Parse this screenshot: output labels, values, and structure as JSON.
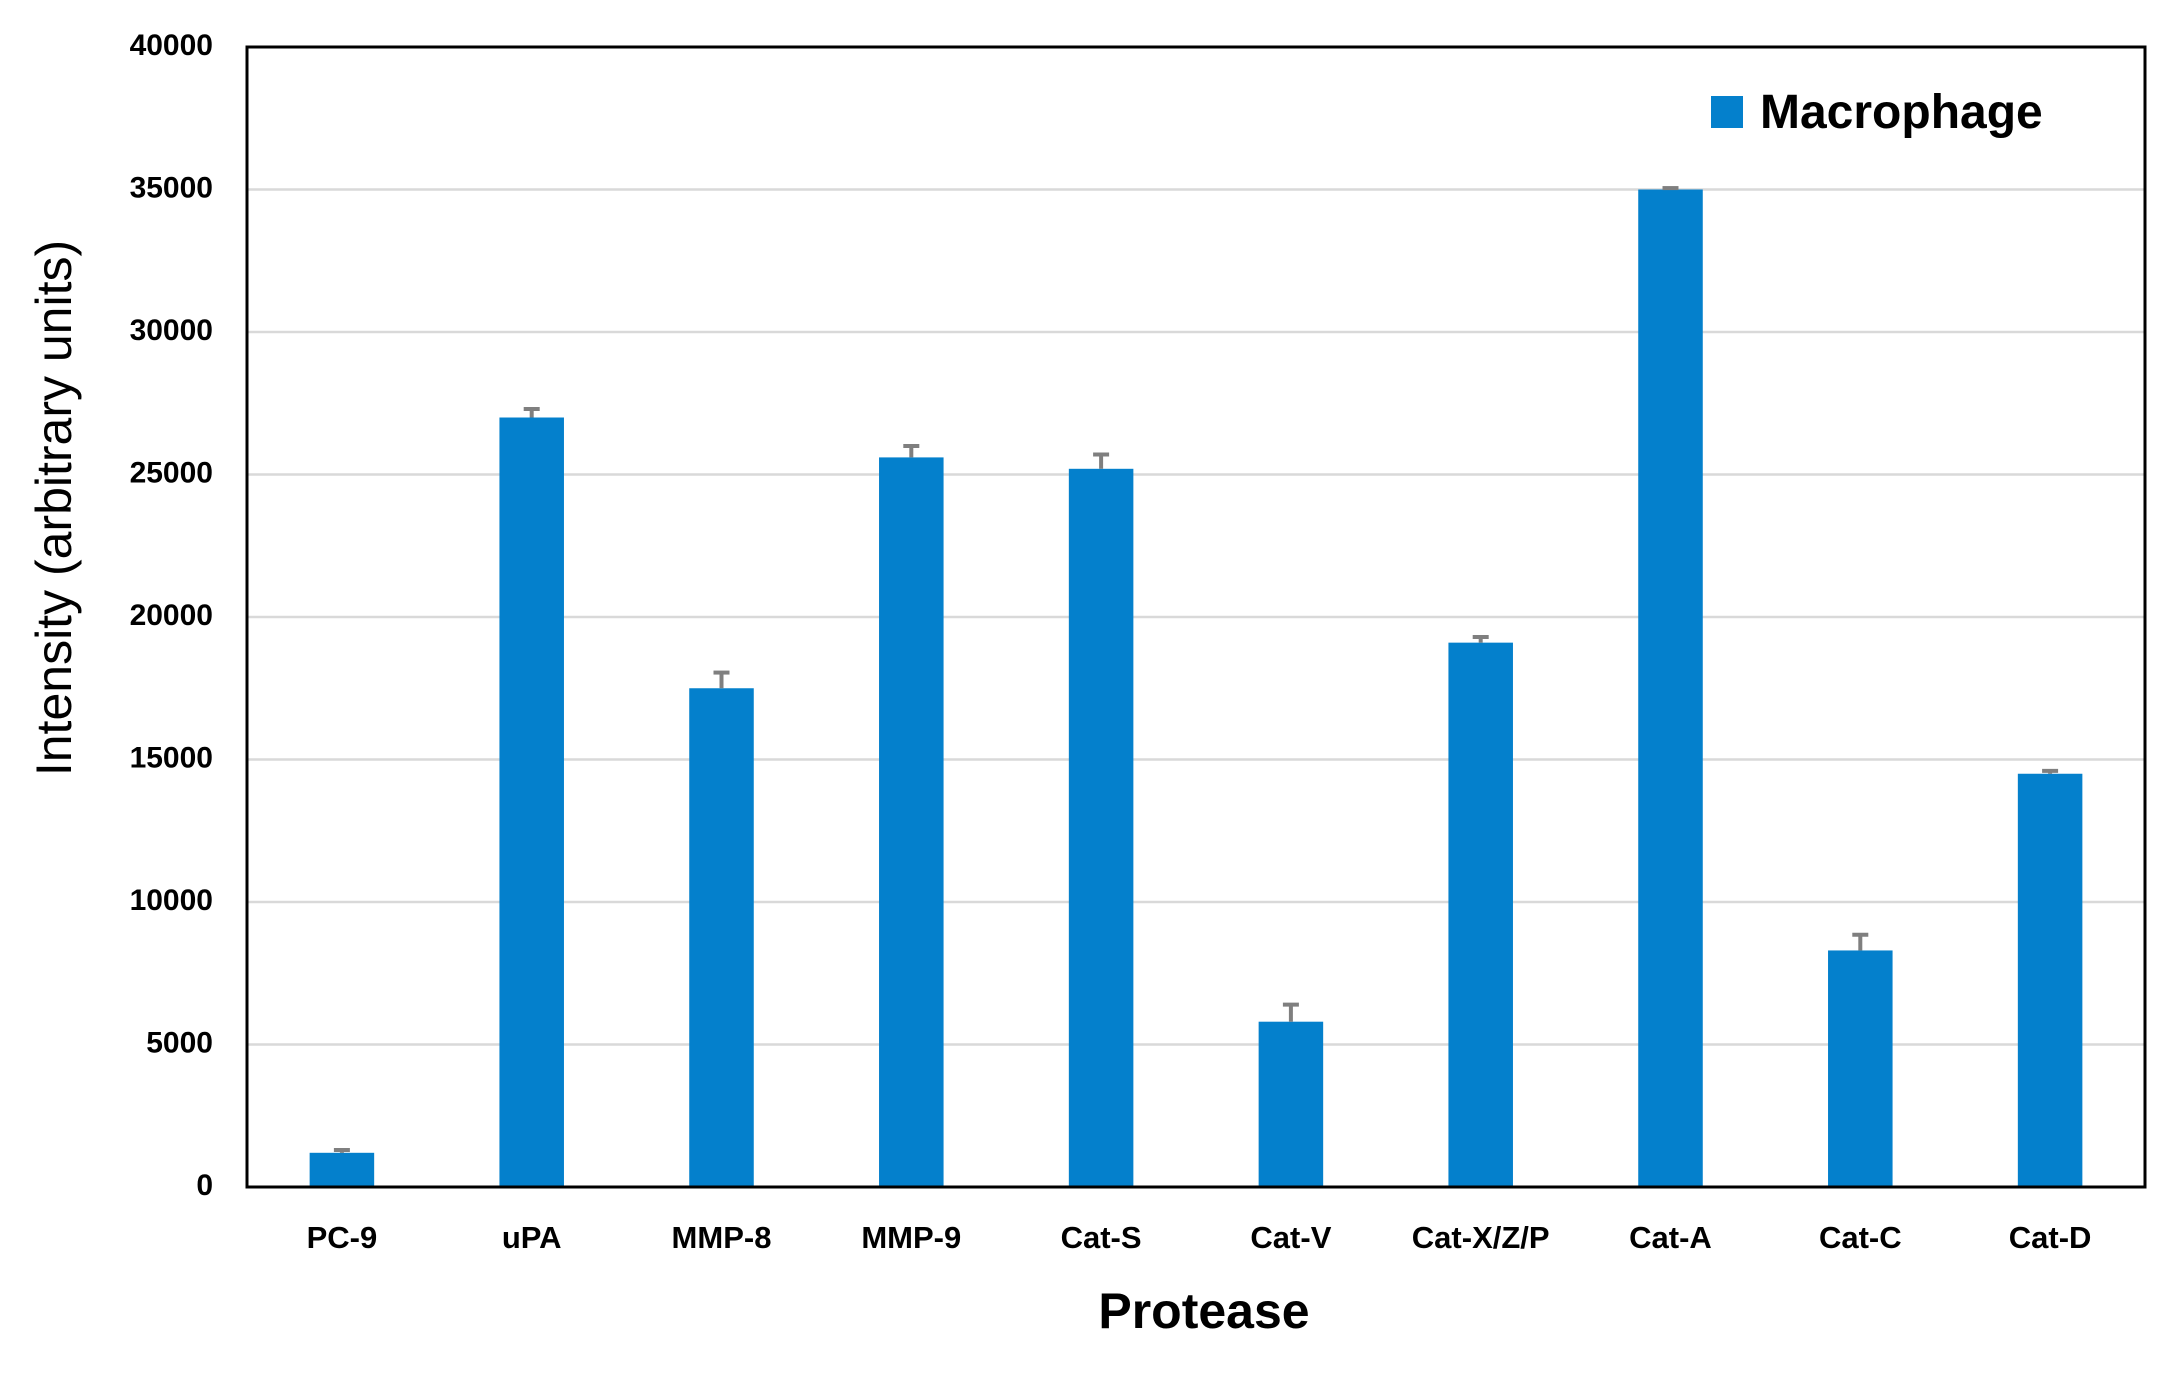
{
  "chart_data": {
    "type": "bar",
    "categories": [
      "PC-9",
      "uPA",
      "MMP-8",
      "MMP-9",
      "Cat-S",
      "Cat-V",
      "Cat-X/Z/P",
      "Cat-A",
      "Cat-C",
      "Cat-D"
    ],
    "series": [
      {
        "name": "Macrophage",
        "values": [
          1200,
          27000,
          17500,
          25600,
          25200,
          5800,
          19100,
          35000,
          8300,
          14500
        ],
        "errors": [
          100,
          300,
          550,
          400,
          500,
          600,
          200,
          50,
          550,
          100
        ],
        "color": "#0480CC"
      }
    ],
    "xlabel": "Protease",
    "ylabel": "Intensity (arbitrary units)",
    "ylim": [
      0,
      40000
    ],
    "yticks": [
      0,
      5000,
      10000,
      15000,
      20000,
      25000,
      30000,
      35000,
      40000
    ],
    "grid": true,
    "legend_position": "top-right",
    "colors": {
      "bar": "#0480CC",
      "error_bar": "#7f7f7f",
      "grid": "#d9d9d9"
    }
  }
}
